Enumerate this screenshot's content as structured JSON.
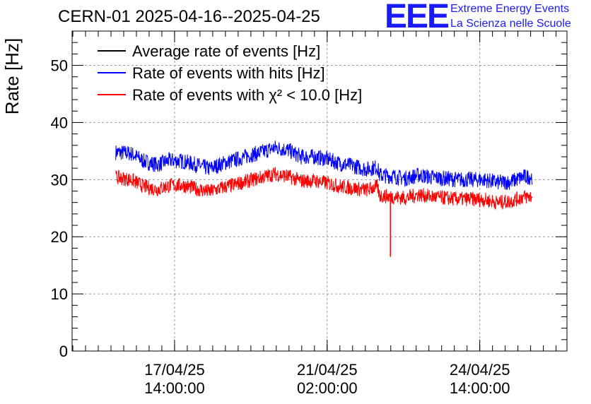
{
  "chart_data": {
    "type": "line",
    "title": "CERN-01 2025-04-16--2025-04-25",
    "ylabel": "Rate [Hz]",
    "xlabel": "",
    "ylim": [
      0,
      56
    ],
    "yticks": [
      0,
      10,
      20,
      30,
      40,
      50
    ],
    "grid": true,
    "legend_position": "top-left",
    "x_ticks": [
      {
        "line1": "17/04/25",
        "line2": "14:00:00",
        "x": 1.0
      },
      {
        "line1": "21/04/25",
        "line2": "02:00:00",
        "x": 4.5
      },
      {
        "line1": "24/04/25",
        "line2": "14:00:00",
        "x": 8.0
      }
    ],
    "xlim": [
      -1.35,
      10.0
    ],
    "x_units": "days since 16/04/25 14:00:00",
    "series": [
      {
        "name": "Average rate of events [Hz]",
        "color": "#000000",
        "values": []
      },
      {
        "name": "Rate of events with hits [Hz]",
        "color": "#0000ff",
        "points": [
          [
            -0.35,
            34.8
          ],
          [
            0.0,
            34.6
          ],
          [
            0.3,
            33.2
          ],
          [
            0.6,
            32.6
          ],
          [
            0.9,
            33.4
          ],
          [
            1.2,
            33.2
          ],
          [
            1.5,
            32.6
          ],
          [
            1.8,
            31.9
          ],
          [
            2.1,
            32.8
          ],
          [
            2.4,
            33.5
          ],
          [
            2.7,
            34.2
          ],
          [
            3.0,
            34.8
          ],
          [
            3.3,
            35.6
          ],
          [
            3.6,
            35.2
          ],
          [
            3.9,
            34.0
          ],
          [
            4.2,
            34.0
          ],
          [
            4.5,
            33.6
          ],
          [
            4.8,
            32.8
          ],
          [
            5.1,
            32.4
          ],
          [
            5.4,
            31.8
          ],
          [
            5.65,
            32.2
          ],
          [
            5.7,
            30.8
          ],
          [
            6.0,
            30.6
          ],
          [
            6.3,
            30.2
          ],
          [
            6.6,
            30.8
          ],
          [
            6.9,
            30.4
          ],
          [
            7.2,
            30.2
          ],
          [
            7.5,
            30.0
          ],
          [
            7.8,
            30.0
          ],
          [
            8.1,
            30.0
          ],
          [
            8.4,
            29.5
          ],
          [
            8.7,
            29.6
          ],
          [
            9.0,
            30.5
          ],
          [
            9.2,
            30.5
          ]
        ],
        "noise": 1.4
      },
      {
        "name": "Rate of events with χ² < 10.0 [Hz]",
        "color": "#ff0000",
        "points": [
          [
            -0.35,
            30.4
          ],
          [
            0.0,
            30.0
          ],
          [
            0.3,
            28.8
          ],
          [
            0.6,
            28.3
          ],
          [
            0.9,
            29.0
          ],
          [
            1.2,
            29.0
          ],
          [
            1.5,
            28.4
          ],
          [
            1.8,
            27.9
          ],
          [
            2.1,
            28.6
          ],
          [
            2.4,
            29.2
          ],
          [
            2.7,
            29.8
          ],
          [
            3.0,
            30.4
          ],
          [
            3.3,
            31.0
          ],
          [
            3.6,
            30.6
          ],
          [
            3.9,
            29.8
          ],
          [
            4.2,
            29.8
          ],
          [
            4.5,
            29.4
          ],
          [
            4.8,
            28.8
          ],
          [
            5.1,
            28.5
          ],
          [
            5.4,
            28.2
          ],
          [
            5.65,
            28.8
          ],
          [
            5.7,
            27.2
          ],
          [
            6.0,
            27.0
          ],
          [
            6.3,
            26.8
          ],
          [
            6.6,
            27.4
          ],
          [
            6.9,
            27.0
          ],
          [
            7.2,
            26.8
          ],
          [
            7.5,
            26.6
          ],
          [
            7.8,
            26.6
          ],
          [
            8.1,
            26.5
          ],
          [
            8.4,
            26.0
          ],
          [
            8.7,
            26.2
          ],
          [
            9.0,
            27.0
          ],
          [
            9.2,
            27.0
          ]
        ],
        "noise": 1.3,
        "spike": {
          "x": 5.95,
          "y": 16.5
        }
      }
    ]
  },
  "logo": {
    "mark": "EEE",
    "line1": "Extreme Energy Events",
    "line2": "La Scienza nelle Scuole"
  }
}
